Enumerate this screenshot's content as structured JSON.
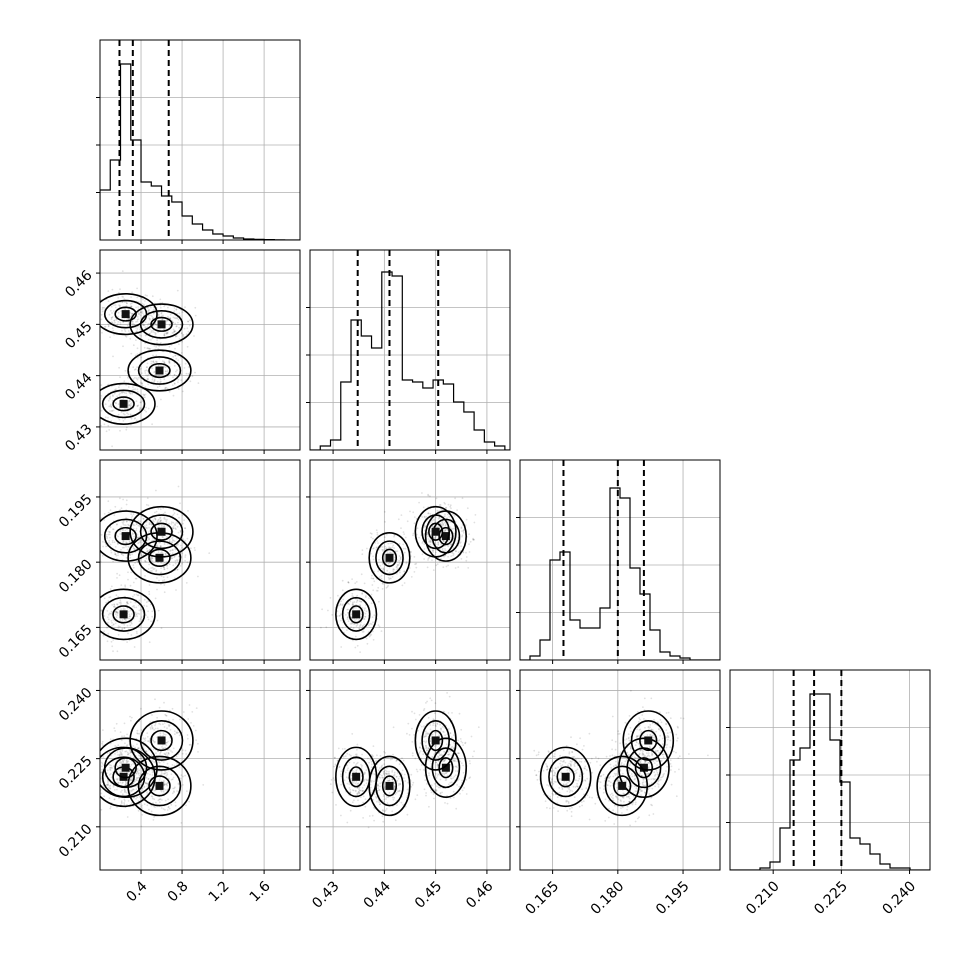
{
  "chart_data": {
    "type": "corner",
    "grid": true,
    "parameters": [
      {
        "range": [
          0.0,
          1.95
        ],
        "ticks": [
          "0.4",
          "0.8",
          "1.2",
          "1.6"
        ],
        "quantiles": [
          0.19,
          0.32,
          0.67
        ]
      },
      {
        "range": [
          0.4255,
          0.4645
        ],
        "ticks": [
          "0.43",
          "0.44",
          "0.45",
          "0.46"
        ],
        "quantiles": [
          0.4348,
          0.441,
          0.4505
        ]
      },
      {
        "range": [
          0.1575,
          0.2035
        ],
        "ticks": [
          "0.165",
          "0.180",
          "0.195"
        ],
        "quantiles": [
          0.1675,
          0.18,
          0.186
        ]
      },
      {
        "range": [
          0.2005,
          0.2445
        ],
        "ticks": [
          "0.210",
          "0.225",
          "0.240"
        ],
        "quantiles": [
          0.2145,
          0.219,
          0.225
        ]
      }
    ],
    "histograms": [
      {
        "bins": [
          0.0,
          0.1,
          0.2,
          0.3,
          0.4,
          0.5,
          0.6,
          0.7,
          0.8,
          0.9,
          1.0,
          1.1,
          1.2,
          1.3,
          1.4,
          1.5,
          1.6,
          1.7,
          1.8,
          1.9,
          2.0
        ],
        "counts": [
          0.25,
          0.4,
          0.88,
          0.5,
          0.29,
          0.27,
          0.22,
          0.19,
          0.12,
          0.08,
          0.05,
          0.03,
          0.02,
          0.01,
          0.005,
          0.003,
          0.002,
          0.001,
          0,
          0
        ],
        "ylim": [
          0,
          1.0
        ]
      },
      {
        "bins": [
          0.4255,
          0.4275,
          0.4295,
          0.4315,
          0.4335,
          0.4355,
          0.4375,
          0.4395,
          0.4415,
          0.4435,
          0.4455,
          0.4475,
          0.4495,
          0.4515,
          0.4535,
          0.4555,
          0.4575,
          0.4595,
          0.4615,
          0.4635,
          0.4655
        ],
        "counts": [
          0,
          0.02,
          0.05,
          0.34,
          0.65,
          0.57,
          0.51,
          0.89,
          0.87,
          0.35,
          0.34,
          0.31,
          0.35,
          0.33,
          0.24,
          0.19,
          0.1,
          0.04,
          0.02,
          0
        ],
        "ylim": [
          0,
          1.0
        ]
      },
      {
        "bins": [
          0.1575,
          0.1598,
          0.1621,
          0.1644,
          0.1667,
          0.169,
          0.1713,
          0.1736,
          0.1759,
          0.1782,
          0.1805,
          0.1828,
          0.1851,
          0.1874,
          0.1897,
          0.192,
          0.1943,
          0.1966,
          0.1989,
          0.2012,
          0.2035
        ],
        "counts": [
          0,
          0.02,
          0.1,
          0.5,
          0.54,
          0.2,
          0.16,
          0.16,
          0.26,
          0.86,
          0.81,
          0.46,
          0.33,
          0.15,
          0.04,
          0.02,
          0.01,
          0,
          0,
          0
        ],
        "ylim": [
          0,
          1.0
        ]
      },
      {
        "bins": [
          0.2005,
          0.2027,
          0.2049,
          0.2071,
          0.2093,
          0.2115,
          0.2137,
          0.2159,
          0.2181,
          0.2203,
          0.2225,
          0.2247,
          0.2269,
          0.2291,
          0.2313,
          0.2335,
          0.2357,
          0.2379,
          0.2401,
          0.2423,
          0.2445
        ],
        "counts": [
          0,
          0,
          0,
          0.01,
          0.04,
          0.21,
          0.55,
          0.61,
          0.88,
          0.88,
          0.65,
          0.44,
          0.16,
          0.13,
          0.08,
          0.03,
          0.01,
          0.01,
          0,
          0
        ],
        "ylim": [
          0,
          1.0
        ]
      }
    ],
    "modes": [
      [
        0.23,
        0.4345,
        0.168,
        0.221
      ],
      [
        0.25,
        0.452,
        0.186,
        0.223
      ],
      [
        0.58,
        0.441,
        0.181,
        0.219
      ],
      [
        0.6,
        0.45,
        0.187,
        0.229
      ]
    ]
  }
}
